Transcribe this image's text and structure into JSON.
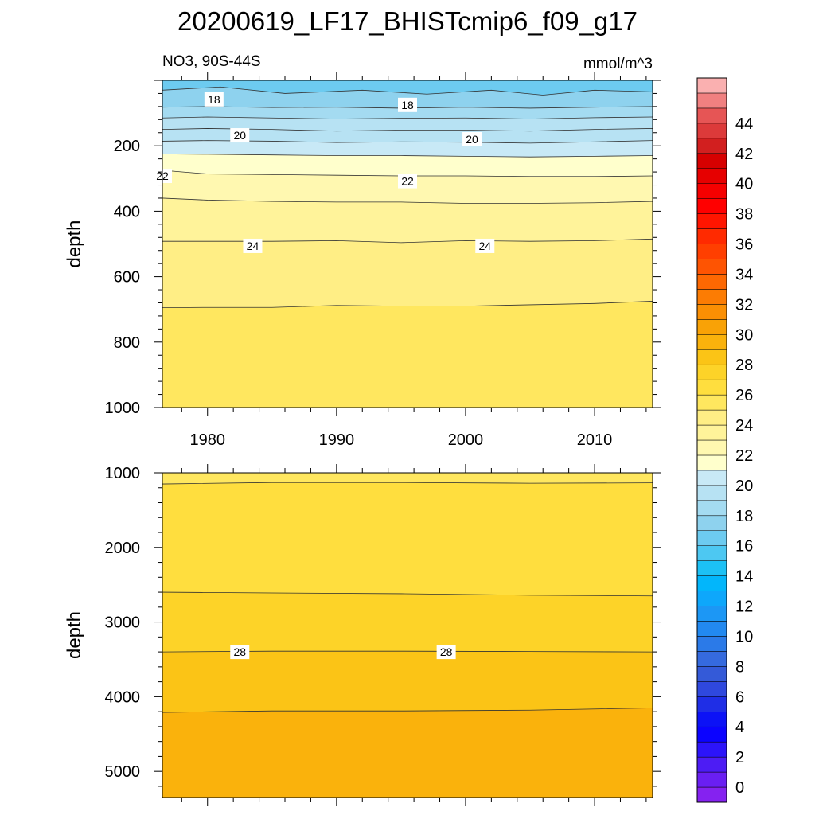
{
  "title": "20200619_LF17_BHISTcmip6_f09_g17",
  "chart_data": {
    "type": "heatmap",
    "title": "20200619_LF17_BHISTcmip6_f09_g17",
    "variable_label": "NO3, 90S-44S",
    "units_label": "mmol/m^3",
    "ylabel": "depth",
    "xlabel": "",
    "x_range": [
      1976.5,
      2014.5
    ],
    "x_ticks": [
      1980,
      1990,
      2000,
      2010
    ],
    "x_tick_labels": [
      "1980",
      "1990",
      "2000",
      "2010"
    ],
    "panels": [
      {
        "name": "upper",
        "y_range": [
          0,
          1000
        ],
        "y_ticks": [
          200,
          400,
          600,
          800,
          1000
        ],
        "y_tick_labels": [
          "200",
          "400",
          "600",
          "800",
          "1000"
        ],
        "contour_levels": [
          17,
          18,
          19,
          20,
          21,
          22,
          23,
          24,
          25
        ],
        "contour_lines": [
          {
            "level": 17.0,
            "x": [
              1976.5,
              1981,
              1986,
              1992,
              1997,
              2002,
              2006,
              2010,
              2014.5
            ],
            "depth": [
              30,
              20,
              40,
              30,
              42,
              30,
              45,
              30,
              35
            ]
          },
          {
            "level": 18.0,
            "x": [
              1976.5,
              1980,
              1985,
              1990,
              1995,
              2000,
              2005,
              2010,
              2014.5
            ],
            "depth": [
              82,
              80,
              83,
              82,
              85,
              82,
              85,
              82,
              80
            ]
          },
          {
            "level": 18.5,
            "x": [
              1976.5,
              1980,
              1985,
              1990,
              1995,
              2000,
              2005,
              2010,
              2014.5
            ],
            "depth": [
              115,
              112,
              115,
              118,
              116,
              115,
              118,
              114,
              112
            ]
          },
          {
            "level": 19.0,
            "x": [
              1976.5,
              1980,
              1985,
              1990,
              1995,
              2000,
              2005,
              2010,
              2014.5
            ],
            "depth": [
              150,
              147,
              150,
              155,
              152,
              152,
              155,
              150,
              147
            ]
          },
          {
            "level": 20.0,
            "x": [
              1976.5,
              1980,
              1985,
              1990,
              1995,
              2000,
              2005,
              2010,
              2014.5
            ],
            "depth": [
              186,
              184,
              186,
              190,
              188,
              189,
              192,
              188,
              184
            ]
          },
          {
            "level": 21.0,
            "x": [
              1976.5,
              1980,
              1985,
              1990,
              1995,
              2000,
              2005,
              2010,
              2014.5
            ],
            "depth": [
              225,
              226,
              228,
              230,
              230,
              232,
              234,
              232,
              230
            ]
          },
          {
            "level": 22.0,
            "x": [
              1976.5,
              1980,
              1985,
              1990,
              1995,
              2000,
              2005,
              2010,
              2014.5
            ],
            "depth": [
              275,
              286,
              288,
              290,
              292,
              292,
              294,
              294,
              292
            ]
          },
          {
            "level": 23.0,
            "x": [
              1976.5,
              1980,
              1985,
              1990,
              1995,
              2000,
              2005,
              2010,
              2014.5
            ],
            "depth": [
              360,
              366,
              370,
              372,
              372,
              376,
              376,
              374,
              370
            ]
          },
          {
            "level": 24.0,
            "x": [
              1976.5,
              1980,
              1985,
              1990,
              1995,
              2000,
              2005,
              2010,
              2014.5
            ],
            "depth": [
              492,
              492,
              492,
              490,
              496,
              490,
              492,
              490,
              485
            ]
          },
          {
            "level": 25.0,
            "x": [
              1976.5,
              1980,
              1985,
              1990,
              1995,
              2000,
              2005,
              2010,
              2014.5
            ],
            "depth": [
              695,
              694,
              694,
              688,
              690,
              690,
              686,
              682,
              675
            ]
          }
        ],
        "contour_labels": [
          {
            "text": "18",
            "x": 1980.5,
            "depth": 58
          },
          {
            "text": "18",
            "x": 1995.5,
            "depth": 75
          },
          {
            "text": "20",
            "x": 1982.5,
            "depth": 168
          },
          {
            "text": "20",
            "x": 2000.5,
            "depth": 180
          },
          {
            "text": "22",
            "x": 1976.5,
            "depth": 292
          },
          {
            "text": "22",
            "x": 1995.5,
            "depth": 308
          },
          {
            "text": "24",
            "x": 1983.5,
            "depth": 506
          },
          {
            "text": "24",
            "x": 2001.5,
            "depth": 506
          }
        ],
        "surface_level": 16.5
      },
      {
        "name": "lower",
        "y_range": [
          1000,
          5350
        ],
        "y_ticks": [
          1000,
          2000,
          3000,
          4000,
          5000
        ],
        "y_tick_labels": [
          "1000",
          "2000",
          "3000",
          "4000",
          "5000"
        ],
        "contour_levels": [
          26,
          27,
          28,
          29
        ],
        "contour_lines": [
          {
            "level": 26.0,
            "x": [
              1976.5,
              1985,
              1995,
              2005,
              2014.5
            ],
            "depth": [
              1150,
              1130,
              1130,
              1140,
              1135
            ]
          },
          {
            "level": 27.0,
            "x": [
              1976.5,
              1985,
              1995,
              2005,
              2014.5
            ],
            "depth": [
              2600,
              2610,
              2620,
              2640,
              2650
            ]
          },
          {
            "level": 28.0,
            "x": [
              1976.5,
              1985,
              1995,
              2005,
              2014.5
            ],
            "depth": [
              3400,
              3390,
              3390,
              3395,
              3400
            ]
          },
          {
            "level": 29.0,
            "x": [
              1976.5,
              1985,
              1995,
              2005,
              2014.5
            ],
            "depth": [
              4210,
              4190,
              4190,
              4180,
              4150
            ]
          }
        ],
        "contour_labels": [
          {
            "text": "28",
            "x": 1982.5,
            "depth": 3400
          },
          {
            "text": "28",
            "x": 1998.5,
            "depth": 3400
          }
        ],
        "surface_level": 25.5
      }
    ],
    "colorbar": {
      "levels": [
        -1,
        0,
        1,
        2,
        3,
        4,
        5,
        6,
        7,
        8,
        9,
        10,
        11,
        12,
        13,
        14,
        15,
        16,
        17,
        18,
        19,
        20,
        21,
        22,
        23,
        24,
        25,
        26,
        27,
        28,
        29,
        30,
        31,
        32,
        33,
        34,
        35,
        36,
        37,
        38,
        39,
        40,
        41,
        42,
        43,
        44,
        45,
        46
      ],
      "colors": [
        "#8522f0",
        "#6a1ff2",
        "#4d1cf4",
        "#2c14fa",
        "#0b03ff",
        "#0c12f6",
        "#1f2ee6",
        "#2f48de",
        "#345ad8",
        "#356ade",
        "#2b7ae8",
        "#2289f0",
        "#1c97f5",
        "#0ea7fb",
        "#02b6fb",
        "#1cc1f5",
        "#4dc8f2",
        "#6dcbf0",
        "#8ed2ee",
        "#a4dbf1",
        "#b7e2f3",
        "#c8e9f6",
        "#ffffcc",
        "#fff8b0",
        "#fff39a",
        "#ffee85",
        "#ffe75f",
        "#ffde3e",
        "#fdd328",
        "#fbc416",
        "#fab20c",
        "#f9a206",
        "#fb8f03",
        "#fc7c03",
        "#fd6802",
        "#fe5402",
        "#ff3f00",
        "#ff2a00",
        "#ff1500",
        "#ff0000",
        "#f50000",
        "#e60000",
        "#d60000",
        "#d21f1f",
        "#dc3a3a",
        "#e65555",
        "#f08080",
        "#fab0b0"
      ],
      "tick_labels": [
        "0",
        "2",
        "4",
        "6",
        "8",
        "10",
        "12",
        "14",
        "16",
        "18",
        "20",
        "22",
        "24",
        "26",
        "28",
        "30",
        "32",
        "34",
        "36",
        "38",
        "40",
        "42",
        "44"
      ],
      "tick_values": [
        0,
        2,
        4,
        6,
        8,
        10,
        12,
        14,
        16,
        18,
        20,
        22,
        24,
        26,
        28,
        30,
        32,
        34,
        36,
        38,
        40,
        42,
        44
      ]
    }
  }
}
